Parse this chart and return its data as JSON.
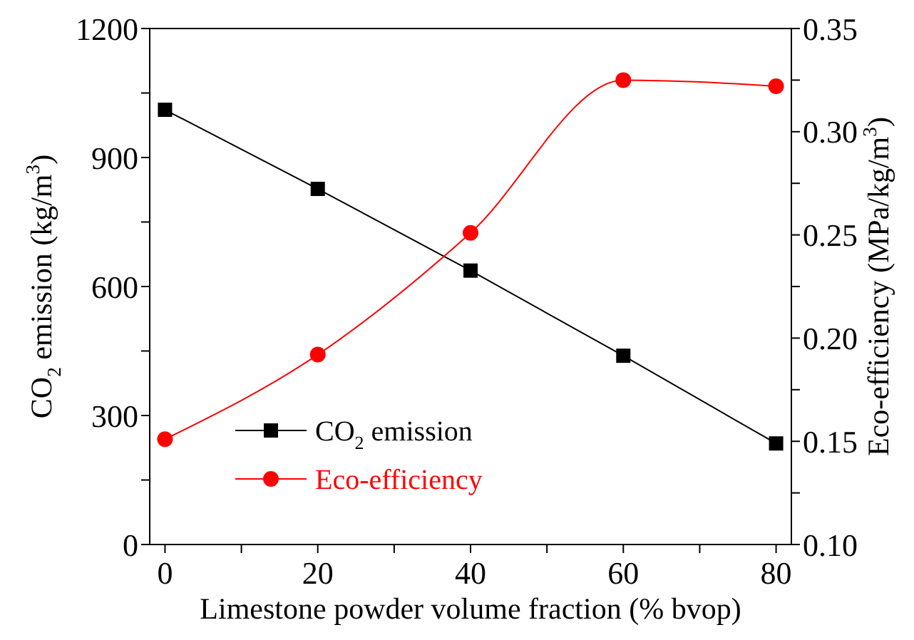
{
  "chart_data": {
    "type": "line",
    "xlabel": "Limestone powder volume fraction (% bvop)",
    "ylabel": "CO$_{2}$ emission (kg/m$^{3}$)",
    "y2label": "Eco-efficiency (MPa/kg/m$^{3}$)",
    "x": [
      0,
      20,
      40,
      60,
      80
    ],
    "series": [
      {
        "name": "CO$_{2}$ emission",
        "color": "#000000",
        "marker": "square",
        "values": [
          1011,
          827,
          637,
          439,
          235
        ]
      },
      {
        "name": "Eco-efficiency",
        "color": "#ff0000",
        "marker": "circle",
        "axis": "y2",
        "values": [
          0.151,
          0.192,
          0.251,
          0.325,
          0.322
        ]
      }
    ],
    "xlim": [
      -2,
      82
    ],
    "xticks": [
      0,
      {
        "value": 10,
        "label": null
      },
      20,
      {
        "value": 30,
        "label": null
      },
      40,
      {
        "value": 50,
        "label": null
      },
      60,
      {
        "value": 70,
        "label": null
      },
      80
    ],
    "ylim": [
      0,
      1200
    ],
    "yticks": [
      0,
      {
        "value": 150,
        "label": null
      },
      300,
      {
        "value": 450,
        "label": null
      },
      600,
      {
        "value": 750,
        "label": null
      },
      900,
      {
        "value": 1050,
        "label": null
      },
      1200
    ],
    "y2lim": [
      0.1,
      0.35
    ],
    "y2ticks": [
      {
        "value": 0.1,
        "label": "0.10"
      },
      {
        "value": 0.125,
        "label": null
      },
      0.15,
      {
        "value": 0.175,
        "label": null
      },
      {
        "value": 0.2,
        "label": "0.20"
      },
      {
        "value": 0.225,
        "label": null
      },
      0.25,
      {
        "value": 0.275,
        "label": null
      },
      {
        "value": 0.3,
        "label": "0.30"
      },
      {
        "value": 0.325,
        "label": null
      },
      0.35
    ],
    "legend": "bottom left",
    "grid": false,
    "line_style": "solid"
  }
}
